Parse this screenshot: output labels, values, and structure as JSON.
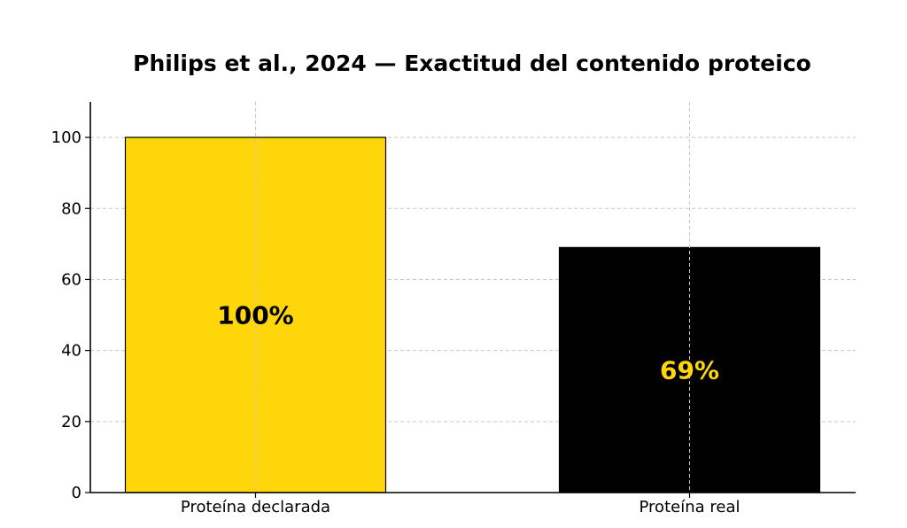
{
  "chart_data": {
    "type": "bar",
    "title": "Philips et al., 2024 — Exactitud del contenido proteico",
    "xlabel": "",
    "ylabel": "",
    "categories": [
      "Proteína declarada",
      "Proteína real"
    ],
    "values": [
      100,
      69
    ],
    "value_labels": [
      "100%",
      "69%"
    ],
    "bar_colors": [
      "#FFD60A",
      "#000000"
    ],
    "value_label_colors": [
      "#000000",
      "#FFD60A"
    ],
    "ylim": [
      0,
      110
    ],
    "yticks": [
      0,
      20,
      40,
      60,
      80,
      100
    ],
    "grid": true,
    "legend": "none"
  }
}
